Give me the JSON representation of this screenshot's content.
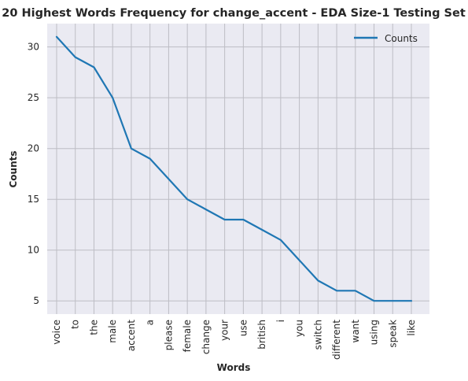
{
  "chart_data": {
    "type": "line",
    "title": "20 Highest Words Frequency for change_accent - EDA Size-1 Testing Set",
    "xlabel": "Words",
    "ylabel": "Counts",
    "categories": [
      "voice",
      "to",
      "the",
      "male",
      "accent",
      "a",
      "please",
      "female",
      "change",
      "your",
      "use",
      "british",
      "i",
      "you",
      "switch",
      "different",
      "want",
      "using",
      "speak",
      "like"
    ],
    "series": [
      {
        "name": "Counts",
        "values": [
          31,
          29,
          28,
          25,
          20,
          19,
          17,
          15,
          14,
          13,
          13,
          12,
          11,
          9,
          7,
          6,
          6,
          5,
          5,
          5
        ],
        "color": "#1f77b4"
      }
    ],
    "ylim": [
      3.7,
      32.3
    ],
    "yticks": [
      5,
      10,
      15,
      20,
      25,
      30
    ],
    "grid": true,
    "legend_position": "top-right",
    "background_color": "#eaeaf2",
    "grid_color": "#bdbdc4"
  }
}
